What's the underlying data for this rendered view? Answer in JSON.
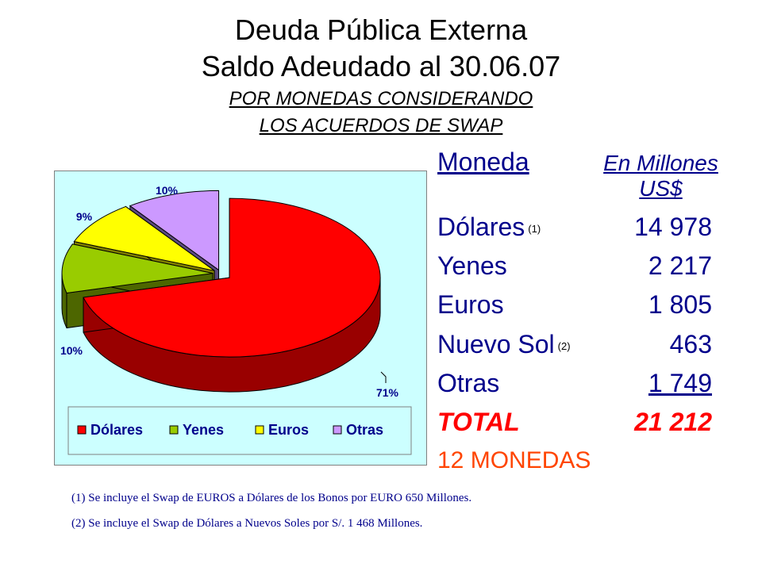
{
  "header": {
    "title_line1": "Deuda Pública Externa",
    "title_line2": "Saldo Adeudado al 30.06.07",
    "subtitle_line1": "POR MONEDAS CONSIDERANDO",
    "subtitle_line2": "LOS ACUERDOS DE SWAP"
  },
  "table": {
    "col_currency": "Moneda",
    "col_units_line1": "En Millones",
    "col_units_line2": "US$",
    "rows": [
      {
        "name": "Dólares",
        "note": "(1)",
        "value": "14 978"
      },
      {
        "name": "Yenes",
        "note": "",
        "value": "2 217"
      },
      {
        "name": "Euros",
        "note": "",
        "value": "1 805"
      },
      {
        "name": "Nuevo Sol",
        "note": "(2)",
        "value": "463"
      },
      {
        "name": "Otras",
        "note": "",
        "value": "1 749"
      }
    ],
    "total_label": "TOTAL",
    "total_value": "21 212",
    "currency_count": "12 MONEDAS"
  },
  "footnotes": [
    "(1)  Se incluye el Swap de EUROS a Dólares de los Bonos por EURO 650 Millones.",
    "(2)  Se incluye el Swap de Dólares a Nuevos Soles por S/. 1 468 Millones."
  ],
  "chart_data": {
    "type": "pie",
    "title": "",
    "categories": [
      "Dólares",
      "Yenes",
      "Euros",
      "Otras"
    ],
    "values": [
      71,
      10,
      9,
      10
    ],
    "labels": [
      "71%",
      "10%",
      "9%",
      "10%"
    ],
    "colors": [
      "#ff0000",
      "#99cc00",
      "#ffff00",
      "#cc99ff"
    ],
    "side_colors": [
      "#990000",
      "#4d6600",
      "#808000",
      "#5c4a80"
    ],
    "background": "#ccffff",
    "three_d": true,
    "exploded": true,
    "legend_position": "bottom"
  }
}
